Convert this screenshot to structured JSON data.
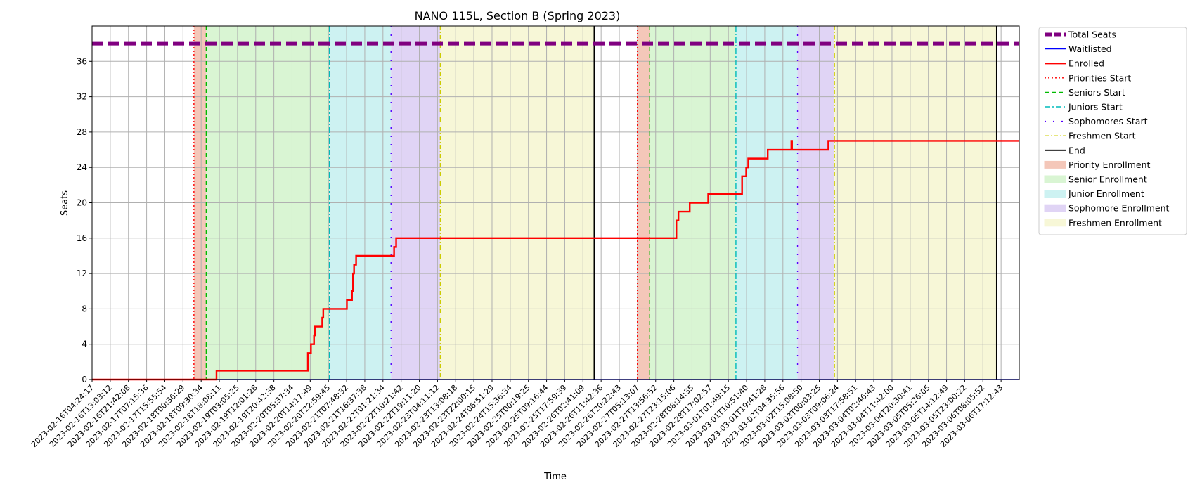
{
  "chart_data": {
    "type": "line",
    "title": "NANO 115L, Section B (Spring 2023)",
    "xlabel": "Time",
    "ylabel": "Seats",
    "ylim": [
      0,
      40
    ],
    "yticks": [
      0,
      4,
      8,
      12,
      16,
      20,
      24,
      28,
      32,
      36
    ],
    "grid": true,
    "legend_position": "outside-right-top",
    "x_start": "2023-02-16T04:24:17",
    "x_end": "2023-03-07T00:00:00",
    "x_tick_labels": [
      "2023-02-16T04:24:17",
      "2023-02-16T13:03:12",
      "2023-02-16T21:42:08",
      "2023-02-17T07:15:36",
      "2023-02-17T15:55:54",
      "2023-02-18T00:36:29",
      "2023-02-18T09:30:34",
      "2023-02-18T18:08:11",
      "2023-02-19T03:05:25",
      "2023-02-19T12:01:28",
      "2023-02-19T20:42:38",
      "2023-02-20T05:37:34",
      "2023-02-20T14:17:49",
      "2023-02-20T22:59:45",
      "2023-02-21T07:48:32",
      "2023-02-21T16:37:38",
      "2023-02-22T01:21:34",
      "2023-02-22T10:21:42",
      "2023-02-22T19:11:20",
      "2023-02-23T04:11:12",
      "2023-02-23T13:08:18",
      "2023-02-23T22:00:15",
      "2023-02-24T06:51:29",
      "2023-02-24T15:36:34",
      "2023-02-25T00:19:25",
      "2023-02-25T09:16:44",
      "2023-02-25T17:59:39",
      "2023-02-26T02:41:09",
      "2023-02-26T11:42:36",
      "2023-02-26T20:22:43",
      "2023-02-27T05:13:07",
      "2023-02-27T13:56:52",
      "2023-02-27T23:15:06",
      "2023-02-28T08:14:35",
      "2023-02-28T17:02:57",
      "2023-03-01T01:49:15",
      "2023-03-01T10:51:40",
      "2023-03-01T19:41:28",
      "2023-03-02T04:35:56",
      "2023-03-02T15:08:50",
      "2023-03-03T00:03:25",
      "2023-03-03T09:06:24",
      "2023-03-03T17:58:51",
      "2023-03-04T02:46:43",
      "2023-03-04T11:42:00",
      "2023-03-04T20:30:41",
      "2023-03-05T05:26:05",
      "2023-03-05T14:12:49",
      "2023-03-05T23:00:22",
      "2023-03-06T08:05:52",
      "2023-03-06T17:12:43"
    ],
    "series": [
      {
        "name": "Total Seats",
        "color": "#800080",
        "style": "dashed-thick",
        "points": [
          [
            "2023-02-16T04:24:17",
            38
          ],
          [
            "2023-03-07T00:00:00",
            38
          ]
        ]
      },
      {
        "name": "Waitlisted",
        "color": "#0000ff",
        "style": "solid-thin",
        "points": [
          [
            "2023-02-16T04:24:17",
            0
          ],
          [
            "2023-03-07T00:00:00",
            0
          ]
        ]
      },
      {
        "name": "Enrolled",
        "color": "#ff0000",
        "style": "step-thick",
        "points": [
          [
            "2023-02-16T04:24:17",
            0
          ],
          [
            "2023-02-18T17:00:00",
            1
          ],
          [
            "2023-02-20T13:30:00",
            3
          ],
          [
            "2023-02-20T14:00:00",
            3
          ],
          [
            "2023-02-20T15:00:00",
            4
          ],
          [
            "2023-02-20T16:30:00",
            5
          ],
          [
            "2023-02-20T17:00:00",
            6
          ],
          [
            "2023-02-20T20:30:00",
            7
          ],
          [
            "2023-02-20T21:00:00",
            8
          ],
          [
            "2023-02-21T08:30:00",
            9
          ],
          [
            "2023-02-21T11:00:00",
            10
          ],
          [
            "2023-02-21T11:30:00",
            12
          ],
          [
            "2023-02-21T12:00:00",
            13
          ],
          [
            "2023-02-21T13:00:00",
            14
          ],
          [
            "2023-02-22T07:30:00",
            15
          ],
          [
            "2023-02-22T08:30:00",
            16
          ],
          [
            "2023-02-28T01:00:00",
            18
          ],
          [
            "2023-02-28T02:00:00",
            19
          ],
          [
            "2023-02-28T07:30:00",
            20
          ],
          [
            "2023-02-28T16:30:00",
            21
          ],
          [
            "2023-03-01T09:00:00",
            23
          ],
          [
            "2023-03-01T11:00:00",
            24
          ],
          [
            "2023-03-01T12:00:00",
            25
          ],
          [
            "2023-03-01T21:30:00",
            26
          ],
          [
            "2023-03-02T09:00:00",
            27
          ],
          [
            "2023-03-02T09:20:00",
            26
          ],
          [
            "2023-03-03T03:00:00",
            27
          ],
          [
            "2023-03-07T00:00:00",
            27
          ]
        ]
      }
    ],
    "markers": [
      {
        "name": "Priorities Start",
        "color": "#ff0000",
        "style": "dotted",
        "times": [
          "2023-02-18T06:00:00",
          "2023-02-27T06:00:00"
        ]
      },
      {
        "name": "Seniors Start",
        "color": "#00bb00",
        "style": "dashed",
        "times": [
          "2023-02-18T12:00:00",
          "2023-02-27T12:00:00"
        ]
      },
      {
        "name": "Juniors Start",
        "color": "#00bbbb",
        "style": "dashdot",
        "times": [
          "2023-02-21T00:00:00",
          "2023-03-01T06:00:00"
        ]
      },
      {
        "name": "Sophomores Start",
        "color": "#5500ff",
        "style": "dashdot-loose",
        "times": [
          "2023-02-22T06:00:00",
          "2023-03-02T12:00:00"
        ]
      },
      {
        "name": "Freshmen Start",
        "color": "#cccc00",
        "style": "dashdotted",
        "times": [
          "2023-02-23T06:00:00",
          "2023-03-03T06:00:00"
        ]
      },
      {
        "name": "End",
        "color": "#000000",
        "style": "solid",
        "times": [
          "2023-02-26T09:00:00",
          "2023-03-06T13:00:00"
        ]
      }
    ],
    "regions": [
      {
        "name": "Priority Enrollment",
        "color": "#f4c7b9",
        "spans": [
          [
            "2023-02-18T06:00:00",
            "2023-02-18T12:00:00"
          ],
          [
            "2023-02-27T06:00:00",
            "2023-02-27T12:00:00"
          ]
        ]
      },
      {
        "name": "Senior Enrollment",
        "color": "#d9f5d3",
        "spans": [
          [
            "2023-02-18T12:00:00",
            "2023-02-21T00:00:00"
          ],
          [
            "2023-02-27T12:00:00",
            "2023-03-01T06:00:00"
          ]
        ]
      },
      {
        "name": "Junior Enrollment",
        "color": "#cdf2f2",
        "spans": [
          [
            "2023-02-21T00:00:00",
            "2023-02-22T06:00:00"
          ],
          [
            "2023-03-01T06:00:00",
            "2023-03-02T12:00:00"
          ]
        ]
      },
      {
        "name": "Sophomore Enrollment",
        "color": "#e0d4f5",
        "spans": [
          [
            "2023-02-22T06:00:00",
            "2023-02-23T06:00:00"
          ],
          [
            "2023-03-02T12:00:00",
            "2023-03-03T06:00:00"
          ]
        ]
      },
      {
        "name": "Freshmen Enrollment",
        "color": "#f7f7d7",
        "spans": [
          [
            "2023-02-23T06:00:00",
            "2023-02-26T09:00:00"
          ],
          [
            "2023-03-03T06:00:00",
            "2023-03-06T13:00:00"
          ]
        ]
      }
    ],
    "legend_order": [
      "Total Seats",
      "Waitlisted",
      "Enrolled",
      "Priorities Start",
      "Seniors Start",
      "Juniors Start",
      "Sophomores Start",
      "Freshmen Start",
      "End",
      "Priority Enrollment",
      "Senior Enrollment",
      "Junior Enrollment",
      "Sophomore Enrollment",
      "Freshmen Enrollment"
    ]
  }
}
